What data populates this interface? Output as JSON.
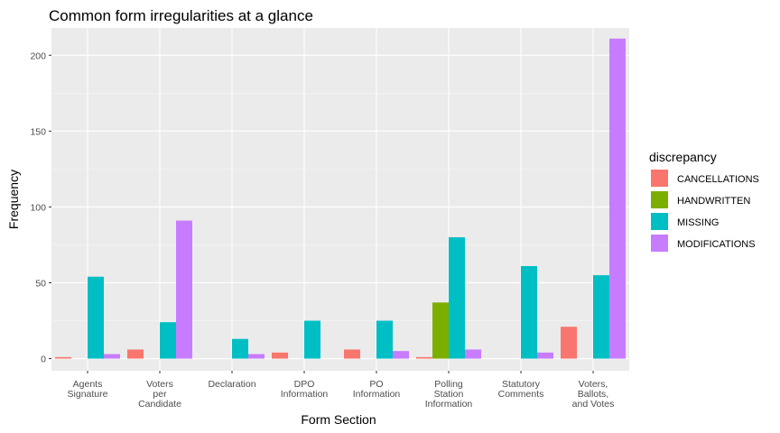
{
  "chart_data": {
    "type": "bar",
    "title": "Common form irregularities at a glance",
    "xlabel": "Form Section",
    "ylabel": "Frequency",
    "ylim": [
      -8,
      218
    ],
    "yticks": [
      0,
      50,
      100,
      150,
      200
    ],
    "grid": true,
    "legend": {
      "title": "discrepancy",
      "placement": "right"
    },
    "categories": [
      [
        "Agents",
        "Signature"
      ],
      [
        "Voters",
        "per",
        "Candidate"
      ],
      [
        "Declaration"
      ],
      [
        "DPO",
        "Information"
      ],
      [
        "PO",
        "Information"
      ],
      [
        "Polling",
        "Station",
        "Information"
      ],
      [
        "Statutory",
        "Comments"
      ],
      [
        "Voters,",
        "Ballots,",
        "and Votes"
      ]
    ],
    "series": [
      {
        "name": "CANCELLATIONS",
        "color": "#F8766D",
        "values": [
          1,
          6,
          null,
          4,
          6,
          1,
          null,
          21
        ]
      },
      {
        "name": "HANDWRITTEN",
        "color": "#7CAE00",
        "values": [
          null,
          null,
          null,
          null,
          null,
          37,
          null,
          null
        ]
      },
      {
        "name": "MISSING",
        "color": "#00BFC4",
        "values": [
          54,
          24,
          13,
          25,
          25,
          80,
          61,
          55
        ]
      },
      {
        "name": "MODIFICATIONS",
        "color": "#C77CFF",
        "values": [
          3,
          91,
          3,
          null,
          5,
          6,
          4,
          211
        ]
      }
    ]
  }
}
